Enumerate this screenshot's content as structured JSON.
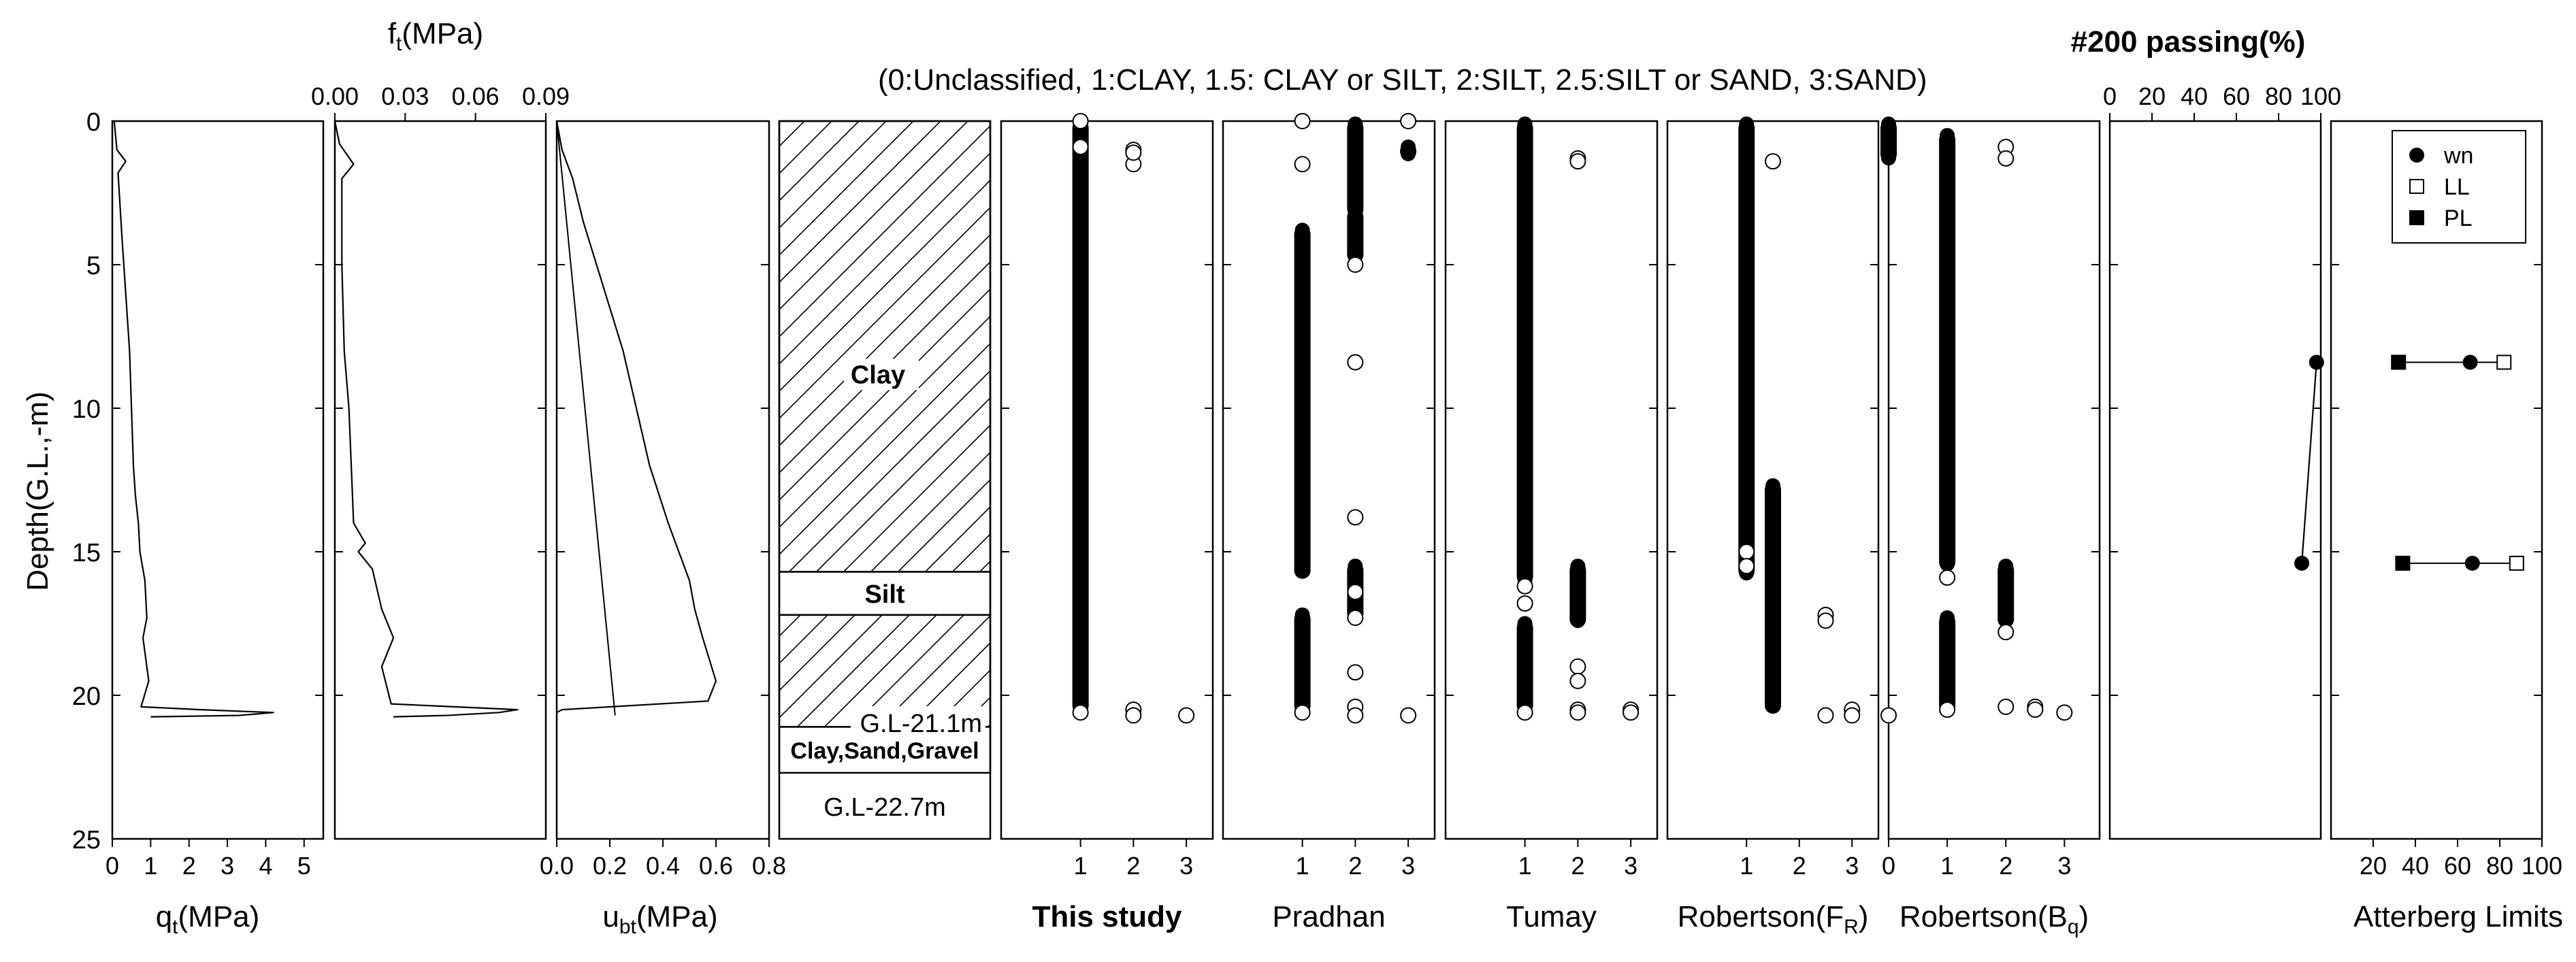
{
  "figure": {
    "y_axis_label": "Depth(G.L.,-m)",
    "y_ticks": [
      "0",
      "5",
      "10",
      "15",
      "20",
      "25"
    ],
    "depth_range": [
      0,
      25
    ],
    "classification_legend": "(0:Unclassified, 1:CLAY, 1.5: CLAY or SILT, 2:SILT, 2.5:SILT or SAND, 3:SAND)"
  },
  "panels": {
    "qt": {
      "xlabel": "q",
      "xlabel_sub": "t",
      "xlabel_unit": "(MPa)",
      "ticks": [
        "0",
        "1",
        "2",
        "3",
        "4",
        "5"
      ],
      "range": [
        0,
        5.5
      ]
    },
    "ft": {
      "xlabel": "f",
      "xlabel_sub": "t",
      "xlabel_unit": "(MPa)",
      "ticks": [
        "0.00",
        "0.03",
        "0.06",
        "0.09"
      ],
      "range": [
        0,
        0.09
      ]
    },
    "ubt": {
      "xlabel": "u",
      "xlabel_sub": "bt",
      "xlabel_unit": "(MPa)",
      "ticks": [
        "0.0",
        "0.2",
        "0.4",
        "0.6",
        "0.8"
      ],
      "range": [
        0,
        0.8
      ]
    },
    "strata": {
      "layers": [
        {
          "name": "Clay",
          "top": 0,
          "bottom": 15.7,
          "pattern": "hatch"
        },
        {
          "name": "Silt",
          "top": 15.7,
          "bottom": 17.2,
          "pattern": "blank"
        },
        {
          "name": "",
          "top": 17.2,
          "bottom": 21.1,
          "pattern": "hatch"
        },
        {
          "name": "Clay,Sand,Gravel",
          "top": 21.1,
          "bottom": 22.7,
          "pattern": "blank"
        }
      ],
      "gl_label_1": "G.L-21.1m",
      "gl_label_2": "G.L-22.7m"
    },
    "methods": [
      {
        "key": "this_study",
        "label": "This study",
        "bold": true,
        "ticks": [
          "1",
          "2",
          "3"
        ]
      },
      {
        "key": "pradhan",
        "label": "Pradhan",
        "bold": false,
        "ticks": [
          "1",
          "2",
          "3"
        ]
      },
      {
        "key": "tumay",
        "label": "Tumay",
        "bold": false,
        "ticks": [
          "1",
          "2",
          "3"
        ]
      },
      {
        "key": "robertson_fr",
        "label": "Robertson(F",
        "sub": "R",
        "suffix": ")",
        "bold": false,
        "ticks": [
          "1",
          "2",
          "3"
        ]
      },
      {
        "key": "robertson_bq",
        "label": "Robertson(B",
        "sub": "q",
        "suffix": ")",
        "bold": false,
        "ticks": [
          "0",
          "1",
          "2",
          "3"
        ]
      }
    ],
    "passing": {
      "title": "#200 passing(%)",
      "ticks": [
        "0",
        "20",
        "40",
        "60",
        "80",
        "100"
      ],
      "range": [
        0,
        100
      ]
    },
    "atterberg": {
      "xlabel": "Atterberg Limits",
      "ticks": [
        "20",
        "40",
        "60",
        "80",
        "100"
      ],
      "range": [
        0,
        100
      ],
      "legend": [
        "wn",
        "LL",
        "PL"
      ]
    }
  },
  "chart_data": [
    {
      "type": "line",
      "title": "",
      "xlabel": "qt(MPa)",
      "ylabel": "Depth(G.L.,-m)",
      "xlim": [
        0,
        5.5
      ],
      "ylim": [
        25,
        0
      ],
      "series": [
        {
          "name": "qt",
          "x": [
            0.05,
            0.12,
            0.35,
            0.15,
            0.25,
            0.35,
            0.45,
            0.5,
            0.55,
            0.6,
            0.68,
            0.72,
            0.85,
            0.9,
            0.8,
            0.95,
            0.75,
            2.3,
            4.2,
            3.3,
            1.0
          ],
          "y": [
            0,
            1.0,
            1.4,
            1.8,
            4,
            6,
            8,
            10,
            12,
            13,
            14,
            15,
            16,
            17.3,
            18,
            19.5,
            20.4,
            20.5,
            20.6,
            20.7,
            20.75
          ]
        }
      ]
    },
    {
      "type": "line",
      "title": "",
      "xlabel": "ft(MPa)",
      "ylabel": "Depth(G.L.,-m)",
      "xlim": [
        0,
        0.09
      ],
      "ylim": [
        25,
        0
      ],
      "series": [
        {
          "name": "ft",
          "x": [
            0.0,
            0.002,
            0.008,
            0.003,
            0.003,
            0.004,
            0.006,
            0.007,
            0.008,
            0.013,
            0.01,
            0.016,
            0.02,
            0.025,
            0.02,
            0.024,
            0.078,
            0.07,
            0.048,
            0.025
          ],
          "y": [
            0,
            0.8,
            1.5,
            2.0,
            5,
            8,
            10,
            12,
            14,
            14.7,
            15,
            15.6,
            17,
            18,
            19,
            20.3,
            20.5,
            20.6,
            20.7,
            20.75
          ]
        }
      ]
    },
    {
      "type": "line",
      "title": "",
      "xlabel": "ubt(MPa)",
      "ylabel": "Depth(G.L.,-m)",
      "xlim": [
        0,
        0.8
      ],
      "ylim": [
        25,
        0
      ],
      "series": [
        {
          "name": "ubt",
          "x": [
            0.0,
            0.02,
            0.06,
            0.1,
            0.15,
            0.2,
            0.25,
            0.3,
            0.35,
            0.42,
            0.5,
            0.52,
            0.55,
            0.6,
            0.57,
            0.02,
            0.0
          ],
          "y": [
            0,
            1.0,
            2,
            3.5,
            5,
            6.5,
            8,
            10,
            12,
            14,
            16,
            17,
            18,
            19.5,
            20.2,
            20.5,
            20.6
          ]
        },
        {
          "name": "hydrostatic",
          "x": [
            0.0,
            0.22
          ],
          "y": [
            0,
            20.7
          ]
        }
      ]
    },
    {
      "type": "scatter",
      "title": "This study",
      "xlabel": "This study",
      "xlim": [
        0,
        3.5
      ],
      "ylim": [
        25,
        0
      ],
      "series": [
        {
          "name": "solid",
          "band_x": 1,
          "band_y": [
            0.1,
            20.5
          ]
        },
        {
          "name": "open",
          "x": [
            1,
            1,
            2,
            2,
            2,
            1,
            2,
            2,
            3
          ],
          "y": [
            0,
            0.9,
            1.5,
            1.0,
            1.1,
            20.6,
            20.5,
            20.7,
            20.7
          ]
        }
      ]
    },
    {
      "type": "scatter",
      "title": "Pradhan",
      "xlabel": "Pradhan",
      "xlim": [
        0,
        3.5
      ],
      "ylim": [
        25,
        0
      ],
      "series": [
        {
          "name": "solid",
          "bands": [
            [
              2,
              0.1,
              3.2
            ],
            [
              2,
              3.2,
              4.8
            ],
            [
              1,
              3.8,
              15.8
            ],
            [
              2,
              15.5,
              17.3
            ],
            [
              1,
              17.2,
              20.5
            ],
            [
              3,
              0.9,
              1.2
            ]
          ]
        },
        {
          "name": "open",
          "x": [
            1,
            3,
            1,
            2,
            2,
            2,
            2,
            2,
            2,
            2,
            1,
            2,
            3
          ],
          "y": [
            0,
            0,
            1.5,
            5.0,
            8.4,
            13.8,
            16.4,
            17.3,
            19.2,
            20.4,
            20.6,
            20.7,
            20.7
          ]
        }
      ]
    },
    {
      "type": "scatter",
      "title": "Tumay",
      "xlabel": "Tumay",
      "xlim": [
        0,
        3.5
      ],
      "ylim": [
        25,
        0
      ],
      "series": [
        {
          "name": "solid",
          "bands": [
            [
              1,
              0.1,
              16.0
            ],
            [
              1,
              17.5,
              20.5
            ],
            [
              2,
              15.5,
              17.5
            ]
          ]
        },
        {
          "name": "open",
          "x": [
            2,
            2,
            1,
            1,
            2,
            2,
            2,
            2,
            3,
            3,
            1
          ],
          "y": [
            1.3,
            1.4,
            16.2,
            16.8,
            19.0,
            19.5,
            20.5,
            20.6,
            20.5,
            20.6,
            20.6
          ]
        }
      ]
    },
    {
      "type": "scatter",
      "title": "Robertson(FR)",
      "xlabel": "Robertson(FR)",
      "xlim": [
        0,
        3.5
      ],
      "ylim": [
        25,
        0
      ],
      "series": [
        {
          "name": "solid",
          "bands": [
            [
              1,
              0.1,
              15.8
            ],
            [
              1.5,
              12.7,
              20.5
            ]
          ]
        },
        {
          "name": "open",
          "x": [
            1.5,
            1,
            1,
            2.5,
            2.5,
            2.5,
            3,
            3
          ],
          "y": [
            1.4,
            15.0,
            15.5,
            17.2,
            17.4,
            20.7,
            20.5,
            20.7
          ]
        }
      ]
    },
    {
      "type": "scatter",
      "title": "Robertson(Bq)",
      "xlabel": "Robertson(Bq)",
      "xlim": [
        0,
        3.5
      ],
      "ylim": [
        25,
        0
      ],
      "series": [
        {
          "name": "solid",
          "bands": [
            [
              0,
              0.1,
              1.3
            ],
            [
              1,
              0.5,
              15.5
            ],
            [
              1,
              17.3,
              20.5
            ],
            [
              2,
              15.5,
              17.5
            ]
          ]
        },
        {
          "name": "open",
          "x": [
            2,
            2,
            1,
            0,
            2,
            2.5,
            2.5,
            3,
            2,
            1
          ],
          "y": [
            0.9,
            1.3,
            15.9,
            20.7,
            20.4,
            20.4,
            20.5,
            20.6,
            17.8,
            20.5
          ]
        }
      ]
    },
    {
      "type": "line",
      "title": "#200 passing(%)",
      "xlabel": "#200 passing(%)",
      "xlim": [
        0,
        100
      ],
      "ylim": [
        25,
        0
      ],
      "series": [
        {
          "name": "passing",
          "x": [
            98,
            91
          ],
          "y": [
            8.4,
            15.4
          ]
        }
      ]
    },
    {
      "type": "scatter",
      "title": "Atterberg Limits",
      "xlabel": "Atterberg Limits",
      "xlim": [
        0,
        100
      ],
      "ylim": [
        25,
        0
      ],
      "series": [
        {
          "name": "wn",
          "x": [
            66,
            67
          ],
          "y": [
            8.4,
            15.4
          ]
        },
        {
          "name": "LL",
          "x": [
            82,
            88
          ],
          "y": [
            8.4,
            15.4
          ]
        },
        {
          "name": "PL",
          "x": [
            32,
            34
          ],
          "y": [
            8.4,
            15.4
          ]
        }
      ]
    }
  ]
}
